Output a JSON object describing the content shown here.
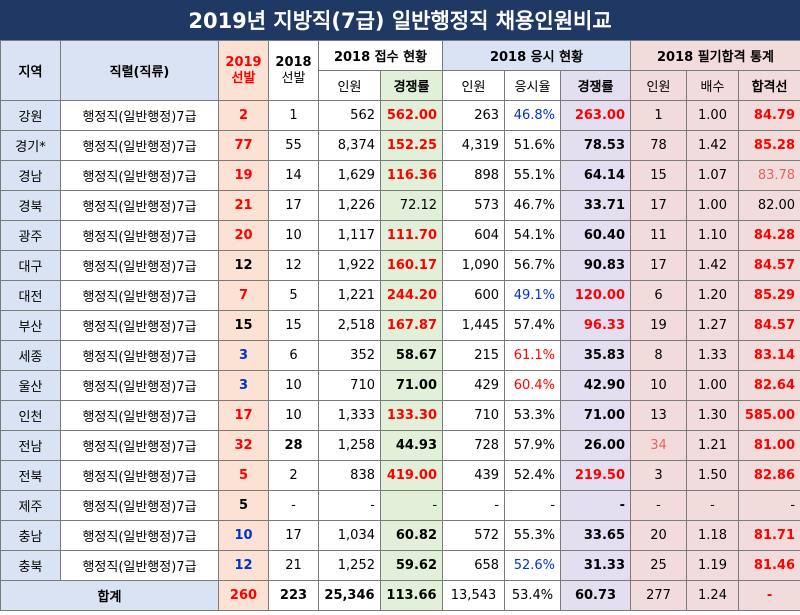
{
  "title": "2019년 지방직(7급) 일반행정직 채용인원비교",
  "headers": {
    "region": "지역",
    "job": "직렬(직류)",
    "sel2019": "2019\n선발",
    "sel2019_a": "2019",
    "sel2019_b": "선발",
    "sel2018_a": "2018",
    "sel2018_b": "선발",
    "receipt_group": "2018 접수 현황",
    "exam_group": "2018 응시 현황",
    "pass_group": "2018 필기합격 통계",
    "receipt_count": "인원",
    "receipt_rate": "경쟁률",
    "exam_count": "인원",
    "exam_ratio": "응시율",
    "exam_rate": "경쟁률",
    "pass_count": "인원",
    "pass_multiple": "배수",
    "pass_cutline": "합격선"
  },
  "rows": [
    {
      "region": "강원",
      "job": "행정직(일반행정)7급",
      "sel2019": "2",
      "sel2018": "1",
      "rcount": "562",
      "rrate": "562.00",
      "ecount": "263",
      "eratio": "46.8%",
      "erate": "263.00",
      "pcount": "1",
      "pmult": "1.00",
      "pcut": "84.79"
    },
    {
      "region": "경기*",
      "job": "행정직(일반행정)7급",
      "sel2019": "77",
      "sel2018": "55",
      "rcount": "8,374",
      "rrate": "152.25",
      "ecount": "4,319",
      "eratio": "51.6%",
      "erate": "78.53",
      "pcount": "78",
      "pmult": "1.42",
      "pcut": "85.28"
    },
    {
      "region": "경남",
      "job": "행정직(일반행정)7급",
      "sel2019": "19",
      "sel2018": "14",
      "rcount": "1,629",
      "rrate": "116.36",
      "ecount": "898",
      "eratio": "55.1%",
      "erate": "64.14",
      "pcount": "15",
      "pmult": "1.07",
      "pcut": "83.78"
    },
    {
      "region": "경북",
      "job": "행정직(일반행정)7급",
      "sel2019": "21",
      "sel2018": "17",
      "rcount": "1,226",
      "rrate": "72.12",
      "ecount": "573",
      "eratio": "46.7%",
      "erate": "33.71",
      "pcount": "17",
      "pmult": "1.00",
      "pcut": "82.00"
    },
    {
      "region": "광주",
      "job": "행정직(일반행정)7급",
      "sel2019": "20",
      "sel2018": "10",
      "rcount": "1,117",
      "rrate": "111.70",
      "ecount": "604",
      "eratio": "54.1%",
      "erate": "60.40",
      "pcount": "11",
      "pmult": "1.10",
      "pcut": "84.28"
    },
    {
      "region": "대구",
      "job": "행정직(일반행정)7급",
      "sel2019": "12",
      "sel2018": "12",
      "rcount": "1,922",
      "rrate": "160.17",
      "ecount": "1,090",
      "eratio": "56.7%",
      "erate": "90.83",
      "pcount": "17",
      "pmult": "1.42",
      "pcut": "84.57"
    },
    {
      "region": "대전",
      "job": "행정직(일반행정)7급",
      "sel2019": "7",
      "sel2018": "5",
      "rcount": "1,221",
      "rrate": "244.20",
      "ecount": "600",
      "eratio": "49.1%",
      "erate": "120.00",
      "pcount": "6",
      "pmult": "1.20",
      "pcut": "85.29"
    },
    {
      "region": "부산",
      "job": "행정직(일반행정)7급",
      "sel2019": "15",
      "sel2018": "15",
      "rcount": "2,518",
      "rrate": "167.87",
      "ecount": "1,445",
      "eratio": "57.4%",
      "erate": "96.33",
      "pcount": "19",
      "pmult": "1.27",
      "pcut": "84.57"
    },
    {
      "region": "세종",
      "job": "행정직(일반행정)7급",
      "sel2019": "3",
      "sel2018": "6",
      "rcount": "352",
      "rrate": "58.67",
      "ecount": "215",
      "eratio": "61.1%",
      "erate": "35.83",
      "pcount": "8",
      "pmult": "1.33",
      "pcut": "83.14"
    },
    {
      "region": "울산",
      "job": "행정직(일반행정)7급",
      "sel2019": "3",
      "sel2018": "10",
      "rcount": "710",
      "rrate": "71.00",
      "ecount": "429",
      "eratio": "60.4%",
      "erate": "42.90",
      "pcount": "10",
      "pmult": "1.00",
      "pcut": "82.64"
    },
    {
      "region": "인천",
      "job": "행정직(일반행정)7급",
      "sel2019": "17",
      "sel2018": "10",
      "rcount": "1,333",
      "rrate": "133.30",
      "ecount": "710",
      "eratio": "53.3%",
      "erate": "71.00",
      "pcount": "13",
      "pmult": "1.30",
      "pcut": "585.00"
    },
    {
      "region": "전남",
      "job": "행정직(일반행정)7급",
      "sel2019": "32",
      "sel2018": "28",
      "rcount": "1,258",
      "rrate": "44.93",
      "ecount": "728",
      "eratio": "57.9%",
      "erate": "26.00",
      "pcount": "34",
      "pmult": "1.21",
      "pcut": "81.00"
    },
    {
      "region": "전북",
      "job": "행정직(일반행정)7급",
      "sel2019": "5",
      "sel2018": "2",
      "rcount": "838",
      "rrate": "419.00",
      "ecount": "439",
      "eratio": "52.4%",
      "erate": "219.50",
      "pcount": "3",
      "pmult": "1.50",
      "pcut": "82.86"
    },
    {
      "region": "제주",
      "job": "행정직(일반행정)7급",
      "sel2019": "5",
      "sel2018": "-",
      "rcount": "-",
      "rrate": "-",
      "ecount": "-",
      "eratio": "-",
      "erate": "-",
      "pcount": "-",
      "pmult": "-",
      "pcut": "-"
    },
    {
      "region": "충남",
      "job": "행정직(일반행정)7급",
      "sel2019": "10",
      "sel2018": "17",
      "rcount": "1,034",
      "rrate": "60.82",
      "ecount": "572",
      "eratio": "55.3%",
      "erate": "33.65",
      "pcount": "20",
      "pmult": "1.18",
      "pcut": "81.71"
    },
    {
      "region": "충북",
      "job": "행정직(일반행정)7급",
      "sel2019": "12",
      "sel2018": "21",
      "rcount": "1,252",
      "rrate": "59.62",
      "ecount": "658",
      "eratio": "52.6%",
      "erate": "31.33",
      "pcount": "25",
      "pmult": "1.19",
      "pcut": "81.46"
    }
  ],
  "total": {
    "label": "합계",
    "sel2019": "260",
    "sel2018": "223",
    "rcount": "25,346",
    "rrate": "113.66",
    "ecount": "13,543",
    "eratio": "53.4%",
    "erate": "60.73",
    "pcount": "277",
    "pmult": "1.24",
    "pcut": "-"
  },
  "styles": {
    "sel2019_colors": [
      "red",
      "red",
      "red",
      "red",
      "red",
      "black",
      "red",
      "black",
      "blue",
      "blue",
      "red",
      "red",
      "red",
      "black",
      "blue",
      "blue"
    ],
    "sel2018_bold": [
      false,
      false,
      false,
      false,
      false,
      false,
      false,
      false,
      false,
      false,
      false,
      true,
      false,
      false,
      false,
      false
    ],
    "rrate_colors": [
      "red",
      "red",
      "red",
      "black",
      "red",
      "red",
      "red",
      "red",
      "black",
      "black",
      "red",
      "black",
      "red",
      "black",
      "black",
      "black"
    ],
    "rrate_bold": [
      true,
      true,
      true,
      false,
      true,
      true,
      true,
      true,
      true,
      true,
      true,
      true,
      true,
      false,
      true,
      true
    ],
    "eratio_colors": [
      "blue",
      "black",
      "black",
      "black",
      "black",
      "black",
      "blue",
      "black",
      "red",
      "red",
      "black",
      "black",
      "black",
      "black",
      "black",
      "blue"
    ],
    "erate_colors": [
      "red",
      "black",
      "black",
      "black",
      "black",
      "black",
      "red",
      "red",
      "black",
      "black",
      "black",
      "black",
      "red",
      "black",
      "black",
      "black"
    ],
    "pcount_colors": [
      "black",
      "black",
      "black",
      "black",
      "black",
      "black",
      "black",
      "black",
      "black",
      "black",
      "black",
      "lred",
      "black",
      "black",
      "black",
      "black"
    ],
    "pcut_colors": [
      "red",
      "red",
      "lred",
      "black",
      "red",
      "red",
      "red",
      "red",
      "red",
      "red",
      "red",
      "red",
      "red",
      "black",
      "red",
      "red"
    ],
    "pcut_bold": [
      true,
      true,
      false,
      false,
      true,
      true,
      true,
      true,
      true,
      true,
      true,
      true,
      true,
      false,
      true,
      true
    ]
  }
}
